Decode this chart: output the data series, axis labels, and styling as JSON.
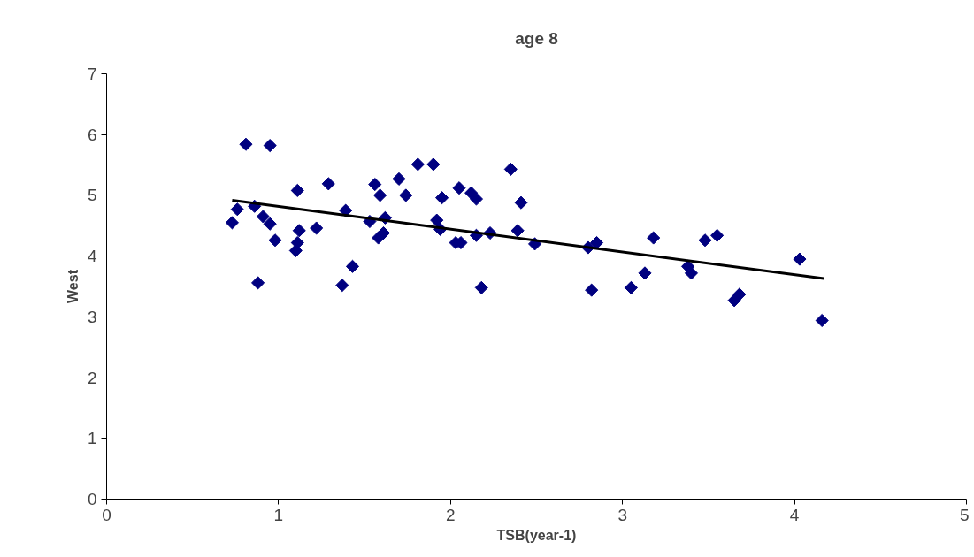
{
  "chart_data": {
    "type": "scatter",
    "title": "age 8",
    "xlabel": "TSB(year-1)",
    "ylabel": "West",
    "xlim": [
      0,
      5
    ],
    "xticks": [
      0,
      1,
      2,
      3,
      4,
      5
    ],
    "ylim": [
      0,
      7
    ],
    "yticks": [
      0,
      1,
      2,
      3,
      4,
      5,
      6,
      7
    ],
    "grid": false,
    "marker": "diamond",
    "series": [
      {
        "color": "#000080",
        "x": [
          0.73,
          0.76,
          0.81,
          0.86,
          0.88,
          0.91,
          0.95,
          0.95,
          0.98,
          1.11,
          1.12,
          1.11,
          1.1,
          1.22,
          1.29,
          1.37,
          1.39,
          1.43,
          1.53,
          1.56,
          1.59,
          1.58,
          1.61,
          1.62,
          1.7,
          1.74,
          1.81,
          1.9,
          1.92,
          1.94,
          1.95,
          2.05,
          2.03,
          2.06,
          2.12,
          2.15,
          2.15,
          2.18,
          2.23,
          2.35,
          2.41,
          2.39,
          2.49,
          2.8,
          2.85,
          2.82,
          3.05,
          3.13,
          3.18,
          3.38,
          3.4,
          3.48,
          3.55,
          3.65,
          3.68,
          4.03,
          4.16
        ],
        "values": [
          4.55,
          4.77,
          5.84,
          4.82,
          3.56,
          4.65,
          5.82,
          4.53,
          4.26,
          5.08,
          4.42,
          4.22,
          4.09,
          4.46,
          5.19,
          3.52,
          4.75,
          3.83,
          4.57,
          5.18,
          5.0,
          4.3,
          4.38,
          4.63,
          5.27,
          5.0,
          5.51,
          5.51,
          4.59,
          4.44,
          4.96,
          5.12,
          4.22,
          4.22,
          5.04,
          4.94,
          4.34,
          3.48,
          4.38,
          5.43,
          4.88,
          4.42,
          4.2,
          4.14,
          4.22,
          3.44,
          3.48,
          3.72,
          4.3,
          3.83,
          3.72,
          4.26,
          4.34,
          3.27,
          3.37,
          3.95,
          2.94
        ]
      },
      {
        "type": "line",
        "color": "#000000",
        "marker": "none",
        "line_style": "solid",
        "x": [
          0.73,
          4.17
        ],
        "values": [
          4.92,
          3.63
        ]
      }
    ]
  }
}
